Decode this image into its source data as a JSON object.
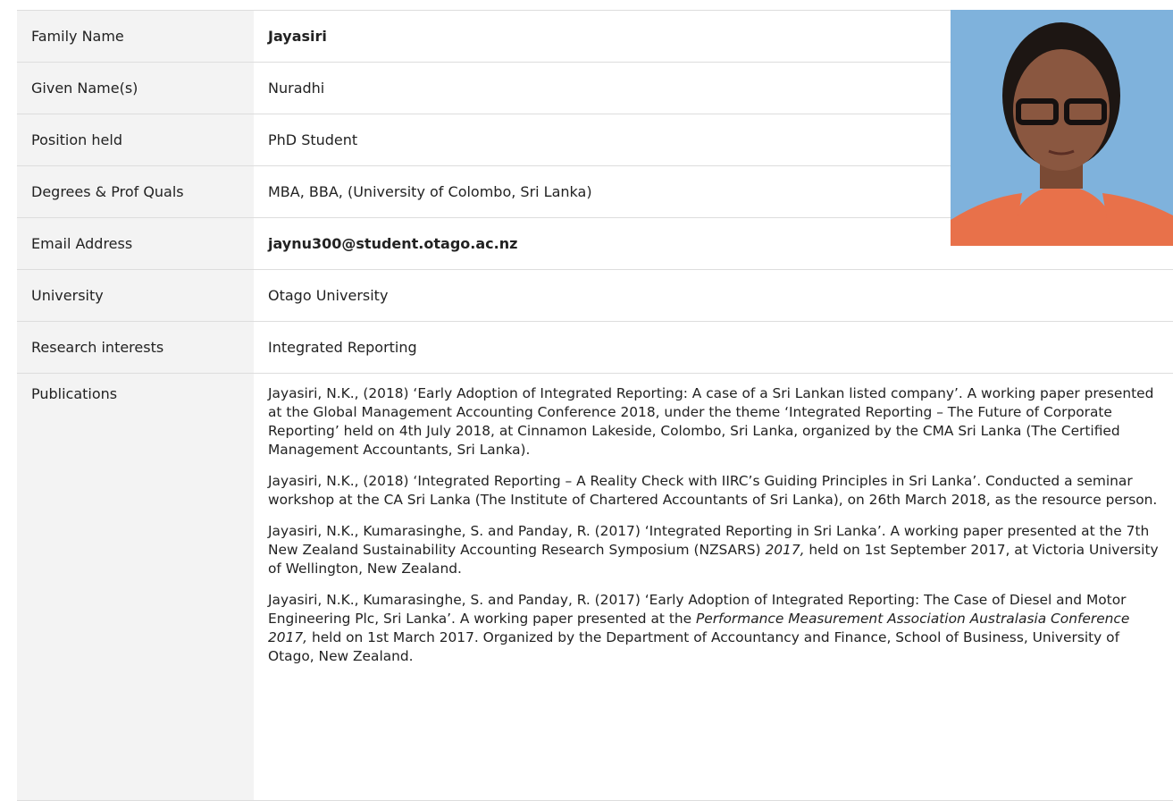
{
  "rows": [
    {
      "label": "Family Name",
      "value": "Jayasiri",
      "bold": true
    },
    {
      "label": "Given Name(s)",
      "value": "Nuradhi"
    },
    {
      "label": "Position held",
      "value": "PhD Student"
    },
    {
      "label": "Degrees & Prof Quals",
      "value": "MBA, BBA, (University of Colombo, Sri Lanka)"
    },
    {
      "label": "Email Address",
      "value": "jaynu300@student.otago.ac.nz",
      "bold": true
    },
    {
      "label": "University",
      "value": "Otago University"
    },
    {
      "label": "Research interests",
      "value": "Integrated Reporting"
    }
  ],
  "publications": {
    "label": "Publications",
    "paragraphs": [
      [
        {
          "text": "Jayasiri, N.K., (2018) ‘Early Adoption of Integrated Reporting: A case of a Sri Lankan listed company’. A working paper presented at the Global Management Accounting Conference 2018, under the theme ‘Integrated Reporting – The Future of Corporate Reporting’ held on 4th July 2018, at Cinnamon Lakeside, Colombo, Sri Lanka, organized by the CMA Sri Lanka (The Certified Management Accountants, Sri Lanka)."
        }
      ],
      [
        {
          "text": "Jayasiri, N.K., (2018) ‘Integrated Reporting – A Reality Check with IIRC’s Guiding Principles in Sri Lanka’. Conducted a seminar workshop at the CA Sri Lanka (The Institute of Chartered Accountants of Sri Lanka), on 26th March 2018, as the resource person."
        }
      ],
      [
        {
          "text": "Jayasiri, N.K., Kumarasinghe, S. and Panday, R. (2017) ‘Integrated Reporting in Sri Lanka’. A working paper presented at the 7th New Zealand Sustainability Accounting Research Symposium (NZSARS) "
        },
        {
          "text": "2017,",
          "italic": true
        },
        {
          "text": " held on 1st September 2017, at Victoria University of Wellington, New Zealand."
        }
      ],
      [
        {
          "text": "Jayasiri, N.K., Kumarasinghe, S. and Panday, R. (2017) ‘Early Adoption of Integrated Reporting: The Case of Diesel and Motor Engineering Plc, Sri Lanka’. A working paper presented at the "
        },
        {
          "text": "Performance Measurement Association Australasia Conference 2017,",
          "italic": true
        },
        {
          "text": " held on 1st March 2017. Organized by the Department of Accountancy and Finance, School of Business, University of Otago, New Zealand."
        }
      ]
    ]
  }
}
